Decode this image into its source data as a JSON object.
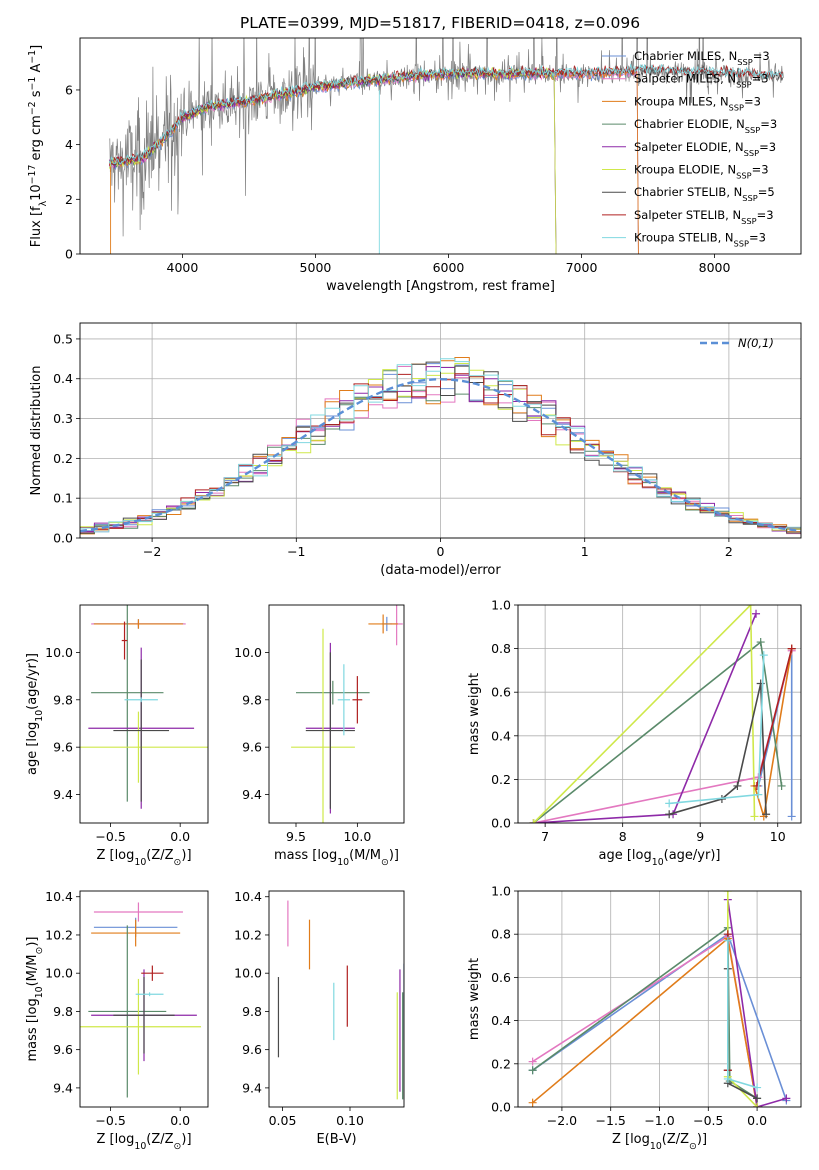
{
  "title": "PLATE=0399, MJD=51817, FIBERID=0418, z=0.096",
  "series_colors": {
    "Chabrier MILES": "#6a8fd6",
    "Salpeter MILES": "#e378c0",
    "Kroupa MILES": "#e07c1a",
    "Chabrier ELODIE": "#5a8a6a",
    "Salpeter ELODIE": "#8e2aa8",
    "Kroupa ELODIE": "#cfe84a",
    "Chabrier STELIB": "#4a4a4a",
    "Salpeter STELIB": "#b02020",
    "Kroupa STELIB": "#80d8e0"
  },
  "chart_data": [
    {
      "id": "spectrum",
      "type": "line",
      "xlabel": "wavelength [Angstrom, rest frame]",
      "ylabel": "Flux [f$_\\lambda$10$^{-17}$ erg cm$^{-2}$ s$^{-1}$ A$^{-1}$]",
      "xlim": [
        3230,
        8650
      ],
      "ylim": [
        0,
        7.9
      ],
      "xticks": [
        "4000",
        "5000",
        "6000",
        "7000",
        "8000"
      ],
      "yticks": [
        "0",
        "2",
        "4",
        "6"
      ],
      "data_color": "#808080",
      "legend_position": "upper right",
      "legend": [
        {
          "name": "Chabrier MILES, N$_{SSP}$=3",
          "color": "#6a8fd6"
        },
        {
          "name": "Salpeter MILES, N$_{SSP}$=3",
          "color": "#e378c0"
        },
        {
          "name": "Kroupa MILES, N$_{SSP}$=3",
          "color": "#e07c1a"
        },
        {
          "name": "Chabrier ELODIE, N$_{SSP}$=3",
          "color": "#5a8a6a"
        },
        {
          "name": "Salpeter ELODIE, N$_{SSP}$=3",
          "color": "#8e2aa8"
        },
        {
          "name": "Kroupa ELODIE, N$_{SSP}$=3",
          "color": "#cfe84a"
        },
        {
          "name": "Chabrier STELIB, N$_{SSP}$=5",
          "color": "#4a4a4a"
        },
        {
          "name": "Salpeter STELIB, N$_{SSP}$=3",
          "color": "#b02020"
        },
        {
          "name": "Kroupa STELIB, N$_{SSP}$=3",
          "color": "#80d8e0"
        }
      ],
      "continuum": {
        "x": [
          3450,
          3700,
          3900,
          4000,
          4200,
          4500,
          5000,
          5500,
          6000,
          6500,
          7000,
          7500,
          8000,
          8500
        ],
        "y": [
          3.3,
          3.5,
          4.4,
          5.0,
          5.4,
          5.6,
          6.1,
          6.4,
          6.6,
          6.6,
          6.6,
          6.7,
          6.6,
          6.5
        ]
      }
    },
    {
      "id": "residuals",
      "type": "histogram",
      "xlabel": "(data-model)/error",
      "ylabel": "Normed distribution",
      "xlim": [
        -2.5,
        2.5
      ],
      "ylim": [
        0,
        0.54
      ],
      "xticks": [
        "−2",
        "−1",
        "0",
        "1",
        "2"
      ],
      "yticks": [
        "0.0",
        "0.1",
        "0.2",
        "0.3",
        "0.4",
        "0.5"
      ],
      "grid": true,
      "legend": [
        {
          "name": "$\\mathcal{N}(0,1)$",
          "color": "#5b8fd6",
          "style": "dashed"
        }
      ],
      "bin_width": 0.1
    },
    {
      "id": "age_vs_Z",
      "type": "errorbar",
      "xlabel": "Z [log$_{10}$(Z/Z$_\\odot$)]",
      "ylabel": "age  [log$_{10}$(age/yr)]",
      "xlim": [
        -0.72,
        0.2
      ],
      "ylim": [
        9.28,
        10.2
      ],
      "xticks": [
        "−0.5",
        "0.0"
      ],
      "yticks": [
        "9.4",
        "9.6",
        "9.8",
        "10.0"
      ],
      "points": [
        {
          "name": "Chabrier MILES",
          "x": -0.3,
          "y": 10.12,
          "xerr": 0.33,
          "yerr": 0.02
        },
        {
          "name": "Salpeter MILES",
          "x": -0.3,
          "y": 10.12,
          "xerr": 0.34,
          "yerr": 0.01
        },
        {
          "name": "Kroupa MILES",
          "x": -0.3,
          "y": 10.12,
          "xerr": 0.32,
          "yerr": 0.02
        },
        {
          "name": "Chabrier ELODIE",
          "x": -0.38,
          "y": 9.83,
          "xerr": 0.26,
          "yerr": 0.46
        },
        {
          "name": "Salpeter ELODIE",
          "x": -0.28,
          "y": 9.68,
          "xerr": 0.38,
          "yerr": 0.34
        },
        {
          "name": "Kroupa ELODIE",
          "x": -0.3,
          "y": 9.6,
          "xerr": 0.55,
          "yerr": 0.15
        },
        {
          "name": "Chabrier STELIB",
          "x": -0.28,
          "y": 9.67,
          "xerr": 0.2,
          "yerr": 0.3
        },
        {
          "name": "Salpeter STELIB",
          "x": -0.4,
          "y": 10.05,
          "xerr": 0.02,
          "yerr": 0.08
        },
        {
          "name": "Kroupa STELIB",
          "x": -0.28,
          "y": 9.8,
          "xerr": 0.12,
          "yerr": 0.01
        }
      ]
    },
    {
      "id": "age_vs_mass",
      "type": "errorbar",
      "xlabel": "mass [log$_{10}$(M/M$_\\odot$)]",
      "ylabel": "",
      "xlim": [
        9.28,
        10.38
      ],
      "ylim": [
        9.28,
        10.2
      ],
      "xticks": [
        "9.5",
        "10.0"
      ],
      "yticks": [
        "9.4",
        "9.6",
        "9.8",
        "10.0"
      ],
      "points": [
        {
          "name": "Chabrier MILES",
          "x": 10.24,
          "y": 10.12,
          "xerr": 0.04,
          "yerr": 0.03
        },
        {
          "name": "Salpeter MILES",
          "x": 10.32,
          "y": 10.12,
          "xerr": 0.05,
          "yerr": 0.09
        },
        {
          "name": "Kroupa MILES",
          "x": 10.21,
          "y": 10.12,
          "xerr": 0.12,
          "yerr": 0.04
        },
        {
          "name": "Chabrier ELODIE",
          "x": 9.8,
          "y": 9.83,
          "xerr": 0.3,
          "yerr": 0.05
        },
        {
          "name": "Salpeter ELODIE",
          "x": 9.78,
          "y": 9.68,
          "xerr": 0.2,
          "yerr": 0.36
        },
        {
          "name": "Kroupa ELODIE",
          "x": 9.72,
          "y": 9.6,
          "xerr": 0.26,
          "yerr": 0.5
        },
        {
          "name": "Chabrier STELIB",
          "x": 9.78,
          "y": 9.67,
          "xerr": 0.2,
          "yerr": 0.33
        },
        {
          "name": "Salpeter STELIB",
          "x": 10.0,
          "y": 9.8,
          "xerr": 0.04,
          "yerr": 0.1
        },
        {
          "name": "Kroupa STELIB",
          "x": 9.89,
          "y": 9.8,
          "xerr": 0.05,
          "yerr": 0.15
        }
      ]
    },
    {
      "id": "weight_vs_age",
      "type": "line",
      "xlabel": "age  [log$_{10}$(age/yr)]",
      "ylabel": "mass weight",
      "xlim": [
        6.65,
        10.3
      ],
      "ylim": [
        0,
        1.0
      ],
      "xticks": [
        "7",
        "8",
        "9",
        "10"
      ],
      "yticks": [
        "0.0",
        "0.2",
        "0.4",
        "0.6",
        "0.8",
        "1.0"
      ],
      "grid": true,
      "series": [
        {
          "name": "Chabrier MILES",
          "x": [
            9.75,
            10.18,
            10.18
          ],
          "y": [
            0.17,
            0.8,
            0.03
          ]
        },
        {
          "name": "Salpeter MILES",
          "x": [
            6.85,
            9.75,
            10.18
          ],
          "y": [
            0.0,
            0.21,
            0.79
          ]
        },
        {
          "name": "Kroupa MILES",
          "x": [
            9.7,
            9.82,
            10.18
          ],
          "y": [
            0.17,
            0.03,
            0.8
          ]
        },
        {
          "name": "Chabrier ELODIE",
          "x": [
            6.85,
            9.78,
            10.05
          ],
          "y": [
            0.0,
            0.83,
            0.17
          ]
        },
        {
          "name": "Salpeter ELODIE",
          "x": [
            6.85,
            8.65,
            9.72
          ],
          "y": [
            0.0,
            0.04,
            0.96
          ]
        },
        {
          "name": "Kroupa ELODIE",
          "x": [
            6.85,
            9.65,
            9.7
          ],
          "y": [
            0.0,
            1.0,
            0.03
          ]
        },
        {
          "name": "Chabrier STELIB",
          "x": [
            8.6,
            9.28,
            9.48,
            9.78,
            9.85
          ],
          "y": [
            0.04,
            0.11,
            0.17,
            0.64,
            0.04
          ]
        },
        {
          "name": "Salpeter STELIB",
          "x": [
            9.73,
            10.18
          ],
          "y": [
            0.17,
            0.8
          ]
        },
        {
          "name": "Kroupa STELIB",
          "x": [
            8.6,
            9.75,
            9.82
          ],
          "y": [
            0.09,
            0.13,
            0.77
          ]
        }
      ]
    },
    {
      "id": "mass_vs_Z",
      "type": "errorbar",
      "xlabel": "Z [log$_{10}$(Z/Z$_\\odot$)]",
      "ylabel": "mass [log$_{10}$(M/M$_\\odot$)]",
      "xlim": [
        -0.72,
        0.2
      ],
      "ylim": [
        9.3,
        10.43
      ],
      "xticks": [
        "−0.5",
        "0.0"
      ],
      "yticks": [
        "9.4",
        "9.6",
        "9.8",
        "10.0",
        "10.2",
        "10.4"
      ],
      "points": [
        {
          "name": "Chabrier MILES",
          "x": -0.32,
          "y": 10.24,
          "xerr": 0.3,
          "yerr": 0.05
        },
        {
          "name": "Salpeter MILES",
          "x": -0.3,
          "y": 10.32,
          "xerr": 0.32,
          "yerr": 0.05
        },
        {
          "name": "Kroupa MILES",
          "x": -0.32,
          "y": 10.21,
          "xerr": 0.32,
          "yerr": 0.07
        },
        {
          "name": "Chabrier ELODIE",
          "x": -0.38,
          "y": 9.8,
          "xerr": 0.28,
          "yerr": 0.45
        },
        {
          "name": "Salpeter ELODIE",
          "x": -0.26,
          "y": 9.78,
          "xerr": 0.38,
          "yerr": 0.24
        },
        {
          "name": "Kroupa ELODIE",
          "x": -0.3,
          "y": 9.72,
          "xerr": 0.45,
          "yerr": 0.25
        },
        {
          "name": "Chabrier STELIB",
          "x": -0.26,
          "y": 9.78,
          "xerr": 0.22,
          "yerr": 0.2
        },
        {
          "name": "Salpeter STELIB",
          "x": -0.2,
          "y": 10.0,
          "xerr": 0.08,
          "yerr": 0.04
        },
        {
          "name": "Kroupa STELIB",
          "x": -0.22,
          "y": 9.89,
          "xerr": 0.1,
          "yerr": 0.01
        }
      ]
    },
    {
      "id": "mass_vs_ebv",
      "type": "errorbar",
      "xlabel": "E(B-V)",
      "ylabel": "",
      "xlim": [
        0.04,
        0.14
      ],
      "ylim": [
        9.3,
        10.43
      ],
      "xticks": [
        "0.05",
        "0.10"
      ],
      "yticks": [
        "9.4",
        "9.6",
        "9.8",
        "10.0",
        "10.2",
        "10.4"
      ],
      "points": [
        {
          "name": "Chabrier MILES",
          "x": 0.14,
          "y": 9.85,
          "xerr": 0.0,
          "yerr": 0.2
        },
        {
          "name": "Salpeter MILES",
          "x": 0.054,
          "y": 10.26,
          "xerr": 0.0,
          "yerr": 0.12
        },
        {
          "name": "Kroupa MILES",
          "x": 0.07,
          "y": 10.15,
          "xerr": 0.0,
          "yerr": 0.13
        },
        {
          "name": "Chabrier ELODIE",
          "x": 0.139,
          "y": 9.62,
          "xerr": 0.0,
          "yerr": 0.28
        },
        {
          "name": "Salpeter ELODIE",
          "x": 0.137,
          "y": 9.7,
          "xerr": 0.0,
          "yerr": 0.32
        },
        {
          "name": "Kroupa ELODIE",
          "x": 0.135,
          "y": 9.62,
          "xerr": 0.0,
          "yerr": 0.28
        },
        {
          "name": "Chabrier STELIB",
          "x": 0.047,
          "y": 9.77,
          "xerr": 0.0,
          "yerr": 0.21
        },
        {
          "name": "Salpeter STELIB",
          "x": 0.098,
          "y": 9.88,
          "xerr": 0.0,
          "yerr": 0.16
        },
        {
          "name": "Kroupa STELIB",
          "x": 0.088,
          "y": 9.8,
          "xerr": 0.0,
          "yerr": 0.15
        }
      ]
    },
    {
      "id": "weight_vs_Z",
      "type": "line",
      "xlabel": "Z [log$_{10}$(Z/Z$_\\odot$)]",
      "ylabel": "mass weight",
      "xlim": [
        -2.45,
        0.45
      ],
      "ylim": [
        0,
        1.0
      ],
      "xticks": [
        "−2.0",
        "−1.5",
        "−1.0",
        "−0.5",
        "0.0"
      ],
      "yticks": [
        "0.0",
        "0.2",
        "0.4",
        "0.6",
        "0.8",
        "1.0"
      ],
      "grid": true,
      "series": [
        {
          "name": "Chabrier MILES",
          "x": [
            -2.3,
            -0.3,
            0.3
          ],
          "y": [
            0.17,
            0.8,
            0.03
          ]
        },
        {
          "name": "Salpeter MILES",
          "x": [
            -2.3,
            -0.3,
            0.0
          ],
          "y": [
            0.21,
            0.79,
            0.0
          ]
        },
        {
          "name": "Kroupa MILES",
          "x": [
            -2.3,
            -0.3,
            0.0
          ],
          "y": [
            0.02,
            0.78,
            0.0
          ]
        },
        {
          "name": "Chabrier ELODIE",
          "x": [
            -2.3,
            -0.3,
            -0.28,
            0.0
          ],
          "y": [
            0.17,
            0.83,
            0.12,
            0.04
          ]
        },
        {
          "name": "Salpeter ELODIE",
          "x": [
            -0.3,
            0.0,
            0.3
          ],
          "y": [
            0.96,
            0.0,
            0.04
          ]
        },
        {
          "name": "Kroupa ELODIE",
          "x": [
            -0.3,
            -0.3,
            0.0
          ],
          "y": [
            1.0,
            0.14,
            0.0
          ]
        },
        {
          "name": "Chabrier STELIB",
          "x": [
            -0.3,
            -0.3,
            -0.3,
            0.0
          ],
          "y": [
            0.64,
            0.17,
            0.11,
            0.04
          ]
        },
        {
          "name": "Salpeter STELIB",
          "x": [
            -0.3,
            -0.3
          ],
          "y": [
            0.8,
            0.17
          ]
        },
        {
          "name": "Kroupa STELIB",
          "x": [
            -0.3,
            -0.3,
            0.0
          ],
          "y": [
            0.77,
            0.13,
            0.09
          ]
        }
      ]
    }
  ]
}
